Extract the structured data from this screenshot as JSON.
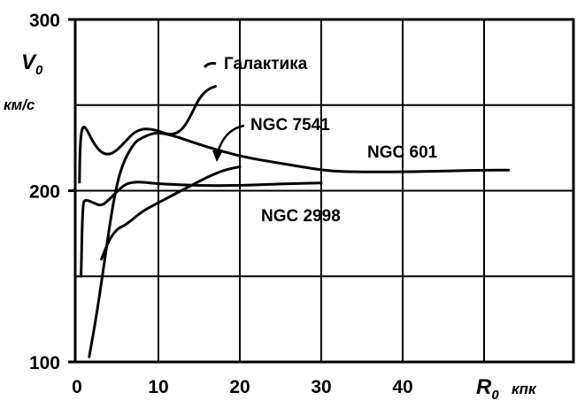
{
  "chart_data": {
    "type": "line",
    "xlabel": "R",
    "xlabel_sub": "0",
    "xunit": "кпк",
    "ylabel": "V",
    "ylabel_sub": "0",
    "yunit": "км/с",
    "xlim": [
      0,
      60
    ],
    "ylim": [
      100,
      300
    ],
    "x_ticks": [
      0,
      10,
      20,
      30,
      40
    ],
    "y_ticks": [
      100,
      200,
      300
    ],
    "grid": true,
    "series": [
      {
        "name": "Галактика",
        "points": [
          [
            0.3,
            205
          ],
          [
            0.4,
            230
          ],
          [
            0.7,
            238
          ],
          [
            1.2,
            236
          ],
          [
            2,
            228
          ],
          [
            3,
            222
          ],
          [
            4,
            221
          ],
          [
            5,
            224
          ],
          [
            6,
            229
          ],
          [
            7,
            234
          ],
          [
            8,
            236
          ],
          [
            9,
            236
          ],
          [
            10,
            235
          ],
          [
            11,
            233
          ],
          [
            12,
            233
          ],
          [
            13,
            236
          ],
          [
            14,
            244
          ],
          [
            15,
            254
          ],
          [
            16,
            259
          ],
          [
            17,
            261
          ]
        ]
      },
      {
        "name": "NGC 7541",
        "points": [
          [
            3,
            160
          ],
          [
            4,
            172
          ],
          [
            5,
            178
          ],
          [
            6,
            180
          ],
          [
            8,
            188
          ],
          [
            10,
            193
          ],
          [
            12,
            198
          ],
          [
            14,
            203
          ],
          [
            16,
            208
          ],
          [
            18,
            212
          ],
          [
            20,
            214
          ]
        ]
      },
      {
        "name": "NGC 601",
        "points": [
          [
            1.5,
            103
          ],
          [
            2.5,
            130
          ],
          [
            3.5,
            163
          ],
          [
            4.5,
            195
          ],
          [
            5.5,
            215
          ],
          [
            7,
            228
          ],
          [
            8,
            231
          ],
          [
            9,
            233
          ],
          [
            10,
            234
          ],
          [
            12,
            232
          ],
          [
            15,
            227
          ],
          [
            20,
            220
          ],
          [
            25,
            216
          ],
          [
            30,
            212
          ],
          [
            33,
            211
          ],
          [
            40,
            211
          ],
          [
            45,
            211.5
          ],
          [
            50,
            212
          ],
          [
            53,
            212
          ]
        ]
      },
      {
        "name": "NGC 2998",
        "points": [
          [
            0.5,
            150
          ],
          [
            0.7,
            192
          ],
          [
            1,
            195
          ],
          [
            2,
            193
          ],
          [
            3,
            191
          ],
          [
            4,
            195
          ],
          [
            5,
            200
          ],
          [
            6,
            204
          ],
          [
            7,
            205
          ],
          [
            8,
            205
          ],
          [
            10,
            204
          ],
          [
            15,
            203
          ],
          [
            20,
            203
          ],
          [
            25,
            204
          ],
          [
            30,
            204.5
          ]
        ]
      }
    ],
    "annotations": [
      {
        "text": "Галактика",
        "points_to": "Галактика"
      },
      {
        "text": "NGC 7541",
        "points_to": "NGC 7541"
      },
      {
        "text": "NGC 601",
        "points_to": "NGC 601"
      },
      {
        "text": "NGC 2998",
        "points_to": "NGC 2998"
      }
    ]
  }
}
